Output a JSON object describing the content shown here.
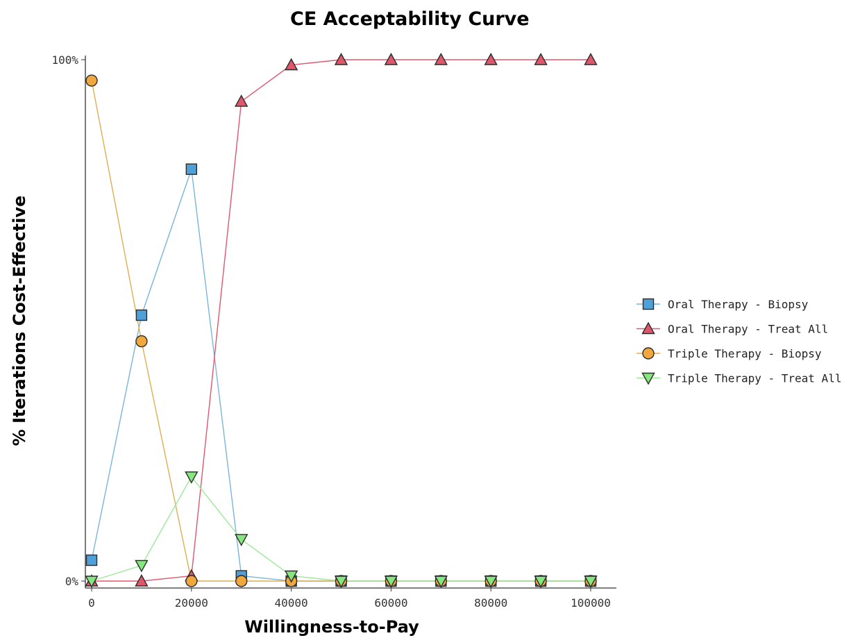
{
  "chart_data": {
    "type": "line",
    "title": "CE Acceptability Curve",
    "xlabel": "Willingness-to-Pay",
    "ylabel": "% Iterations Cost-Effective",
    "x": [
      0,
      10000,
      20000,
      30000,
      40000,
      50000,
      60000,
      70000,
      80000,
      90000,
      100000
    ],
    "xlim": [
      0,
      100000
    ],
    "ylim": [
      0,
      100
    ],
    "x_ticks": [
      "0",
      "20000",
      "40000",
      "60000",
      "80000",
      "100000"
    ],
    "y_ticks": [
      "0%",
      "100%"
    ],
    "grid": false,
    "legend_position": "right",
    "series": [
      {
        "name": "Oral Therapy - Biopsy",
        "marker": "square",
        "fill": "#4f9fd8",
        "line": "#79b4dd",
        "values": [
          4,
          51,
          79,
          1,
          0,
          0,
          0,
          0,
          0,
          0,
          0
        ]
      },
      {
        "name": "Oral Therapy - Treat All",
        "marker": "triangle-up",
        "fill": "#e0566b",
        "line": "#e0566b",
        "values": [
          0,
          0,
          1,
          92,
          99,
          100,
          100,
          100,
          100,
          100,
          100
        ]
      },
      {
        "name": "Triple Therapy - Biopsy",
        "marker": "circle",
        "fill": "#f0a83e",
        "line": "#dfae52",
        "values": [
          96,
          46,
          0,
          0,
          0,
          0,
          0,
          0,
          0,
          0,
          0
        ]
      },
      {
        "name": "Triple Therapy - Treat All",
        "marker": "triangle-down",
        "fill": "#86e67f",
        "line": "#9ee79a",
        "values": [
          0,
          3,
          20,
          8,
          1,
          0,
          0,
          0,
          0,
          0,
          0
        ]
      }
    ]
  }
}
